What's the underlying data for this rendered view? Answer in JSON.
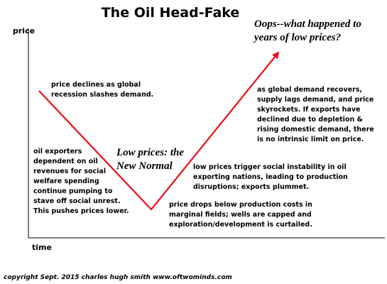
{
  "title": "The Oil Head-Fake",
  "axes": {
    "y_label": "price",
    "x_label": "time"
  },
  "annotations": {
    "decline": [
      "price declines as global",
      "recession slashes demand."
    ],
    "exporters": [
      "oil exporters",
      "dependent on oil",
      "revenues for social",
      "welfare spending",
      "continue pumping to",
      "stave off social unrest.",
      "This pushes prices lower."
    ],
    "new_normal": [
      "Low prices: the",
      "New Normal"
    ],
    "instability": [
      "low prices trigger social instability in oil",
      "exporting nations, leading to production",
      "disruptions; exports plummet."
    ],
    "costs": [
      "price drops below production costs in",
      "marginal fields; wells are capped and",
      "exploration/development is curtailed."
    ],
    "recovery": [
      "as global demand recovers,",
      "supply lags demand, and price",
      "skyrockets. If exports have",
      "declined due to depletion &",
      "rising domestic demand, there",
      "is no intrinsic limit on price."
    ],
    "oops": [
      "Oops--what happened to",
      "years of low prices?"
    ]
  },
  "copyright": "copyright Sept. 2015  charles hugh smith  www.oftwominds.com"
}
